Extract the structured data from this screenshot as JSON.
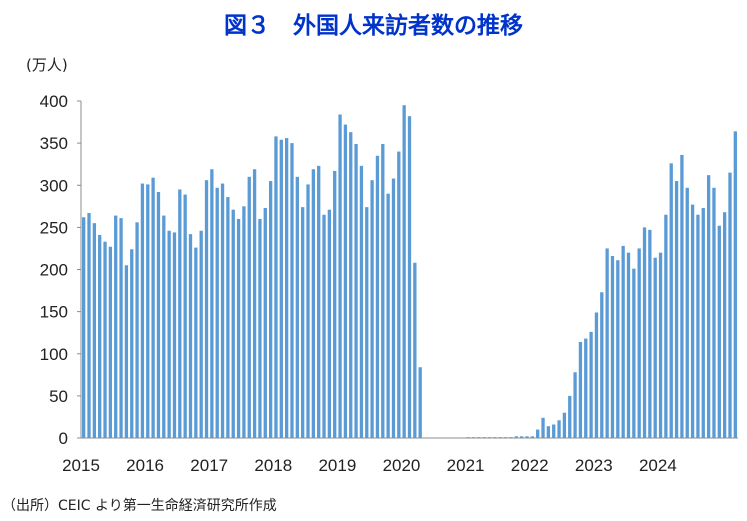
{
  "chart_data": {
    "type": "bar",
    "title": "図３　外国人来訪者数の推移",
    "ylabel": "(万人)",
    "xlabel": "",
    "source": "（出所）CEIC より第一生命経済研究所作成",
    "ylim": [
      0,
      400
    ],
    "yticks": [
      0,
      50,
      100,
      150,
      200,
      250,
      300,
      350,
      400
    ],
    "xtick_labels": [
      "2015",
      "2016",
      "2017",
      "2018",
      "2019",
      "2020",
      "2021",
      "2022",
      "2023",
      "2024"
    ],
    "grid": false,
    "series": [
      {
        "name": "外国人来訪者数",
        "color": "#5b9bd5",
        "start": "2015-01",
        "frequency": "monthly",
        "values": [
          262,
          267,
          255,
          241,
          233,
          227,
          264,
          261,
          205,
          224,
          256,
          302,
          301,
          309,
          292,
          264,
          246,
          244,
          295,
          289,
          242,
          226,
          246,
          306,
          319,
          297,
          302,
          286,
          271,
          260,
          275,
          310,
          319,
          260,
          273,
          305,
          358,
          354,
          356,
          350,
          310,
          274,
          301,
          319,
          323,
          265,
          271,
          317,
          384,
          372,
          363,
          349,
          323,
          274,
          306,
          335,
          349,
          290,
          308,
          340,
          395,
          382,
          208,
          84,
          0,
          0,
          0,
          0,
          0,
          0,
          0,
          0,
          1,
          1,
          1,
          1,
          1,
          1,
          1,
          1,
          1,
          2,
          2,
          2,
          2,
          10,
          24,
          14,
          16,
          21,
          30,
          50,
          78,
          114,
          118,
          126,
          149,
          173,
          225,
          216,
          211,
          228,
          220,
          201,
          225,
          250,
          247,
          214,
          220,
          265,
          326,
          305,
          336,
          297,
          277,
          265,
          273,
          312,
          297,
          252,
          268,
          315,
          364
        ]
      }
    ]
  }
}
